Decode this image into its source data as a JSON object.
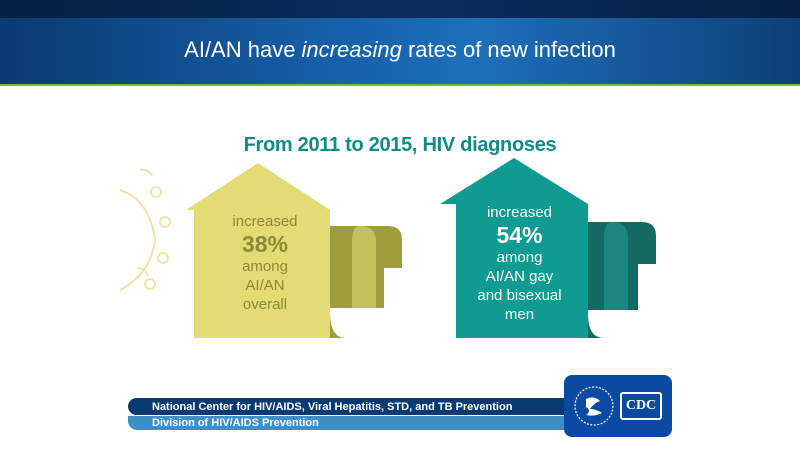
{
  "header": {
    "title_before": "AI/AN have ",
    "title_emphasis": "increasing",
    "title_after": " rates of new infection"
  },
  "subtitle": "From 2011 to 2015, HIV diagnoses",
  "cards": {
    "left": {
      "line1": "increased",
      "percent": "38%",
      "lines": [
        "among",
        "AI/AN",
        "overall"
      ]
    },
    "right": {
      "line1": "increased",
      "percent": "54%",
      "lines": [
        "among",
        "AI/AN gay",
        "and bisexual",
        "men"
      ]
    }
  },
  "footer": {
    "center": "National Center for HIV/AIDS, Viral Hepatitis, STD, and TB Prevention",
    "division": "Division of HIV/AIDS Prevention"
  },
  "logo": {
    "cdc": "CDC"
  },
  "colors": {
    "yellow": "#e3dc74",
    "olive": "#a09d3d",
    "teal": "#0f9a92",
    "dark_teal": "#136a63",
    "navy": "#0b3a73"
  }
}
